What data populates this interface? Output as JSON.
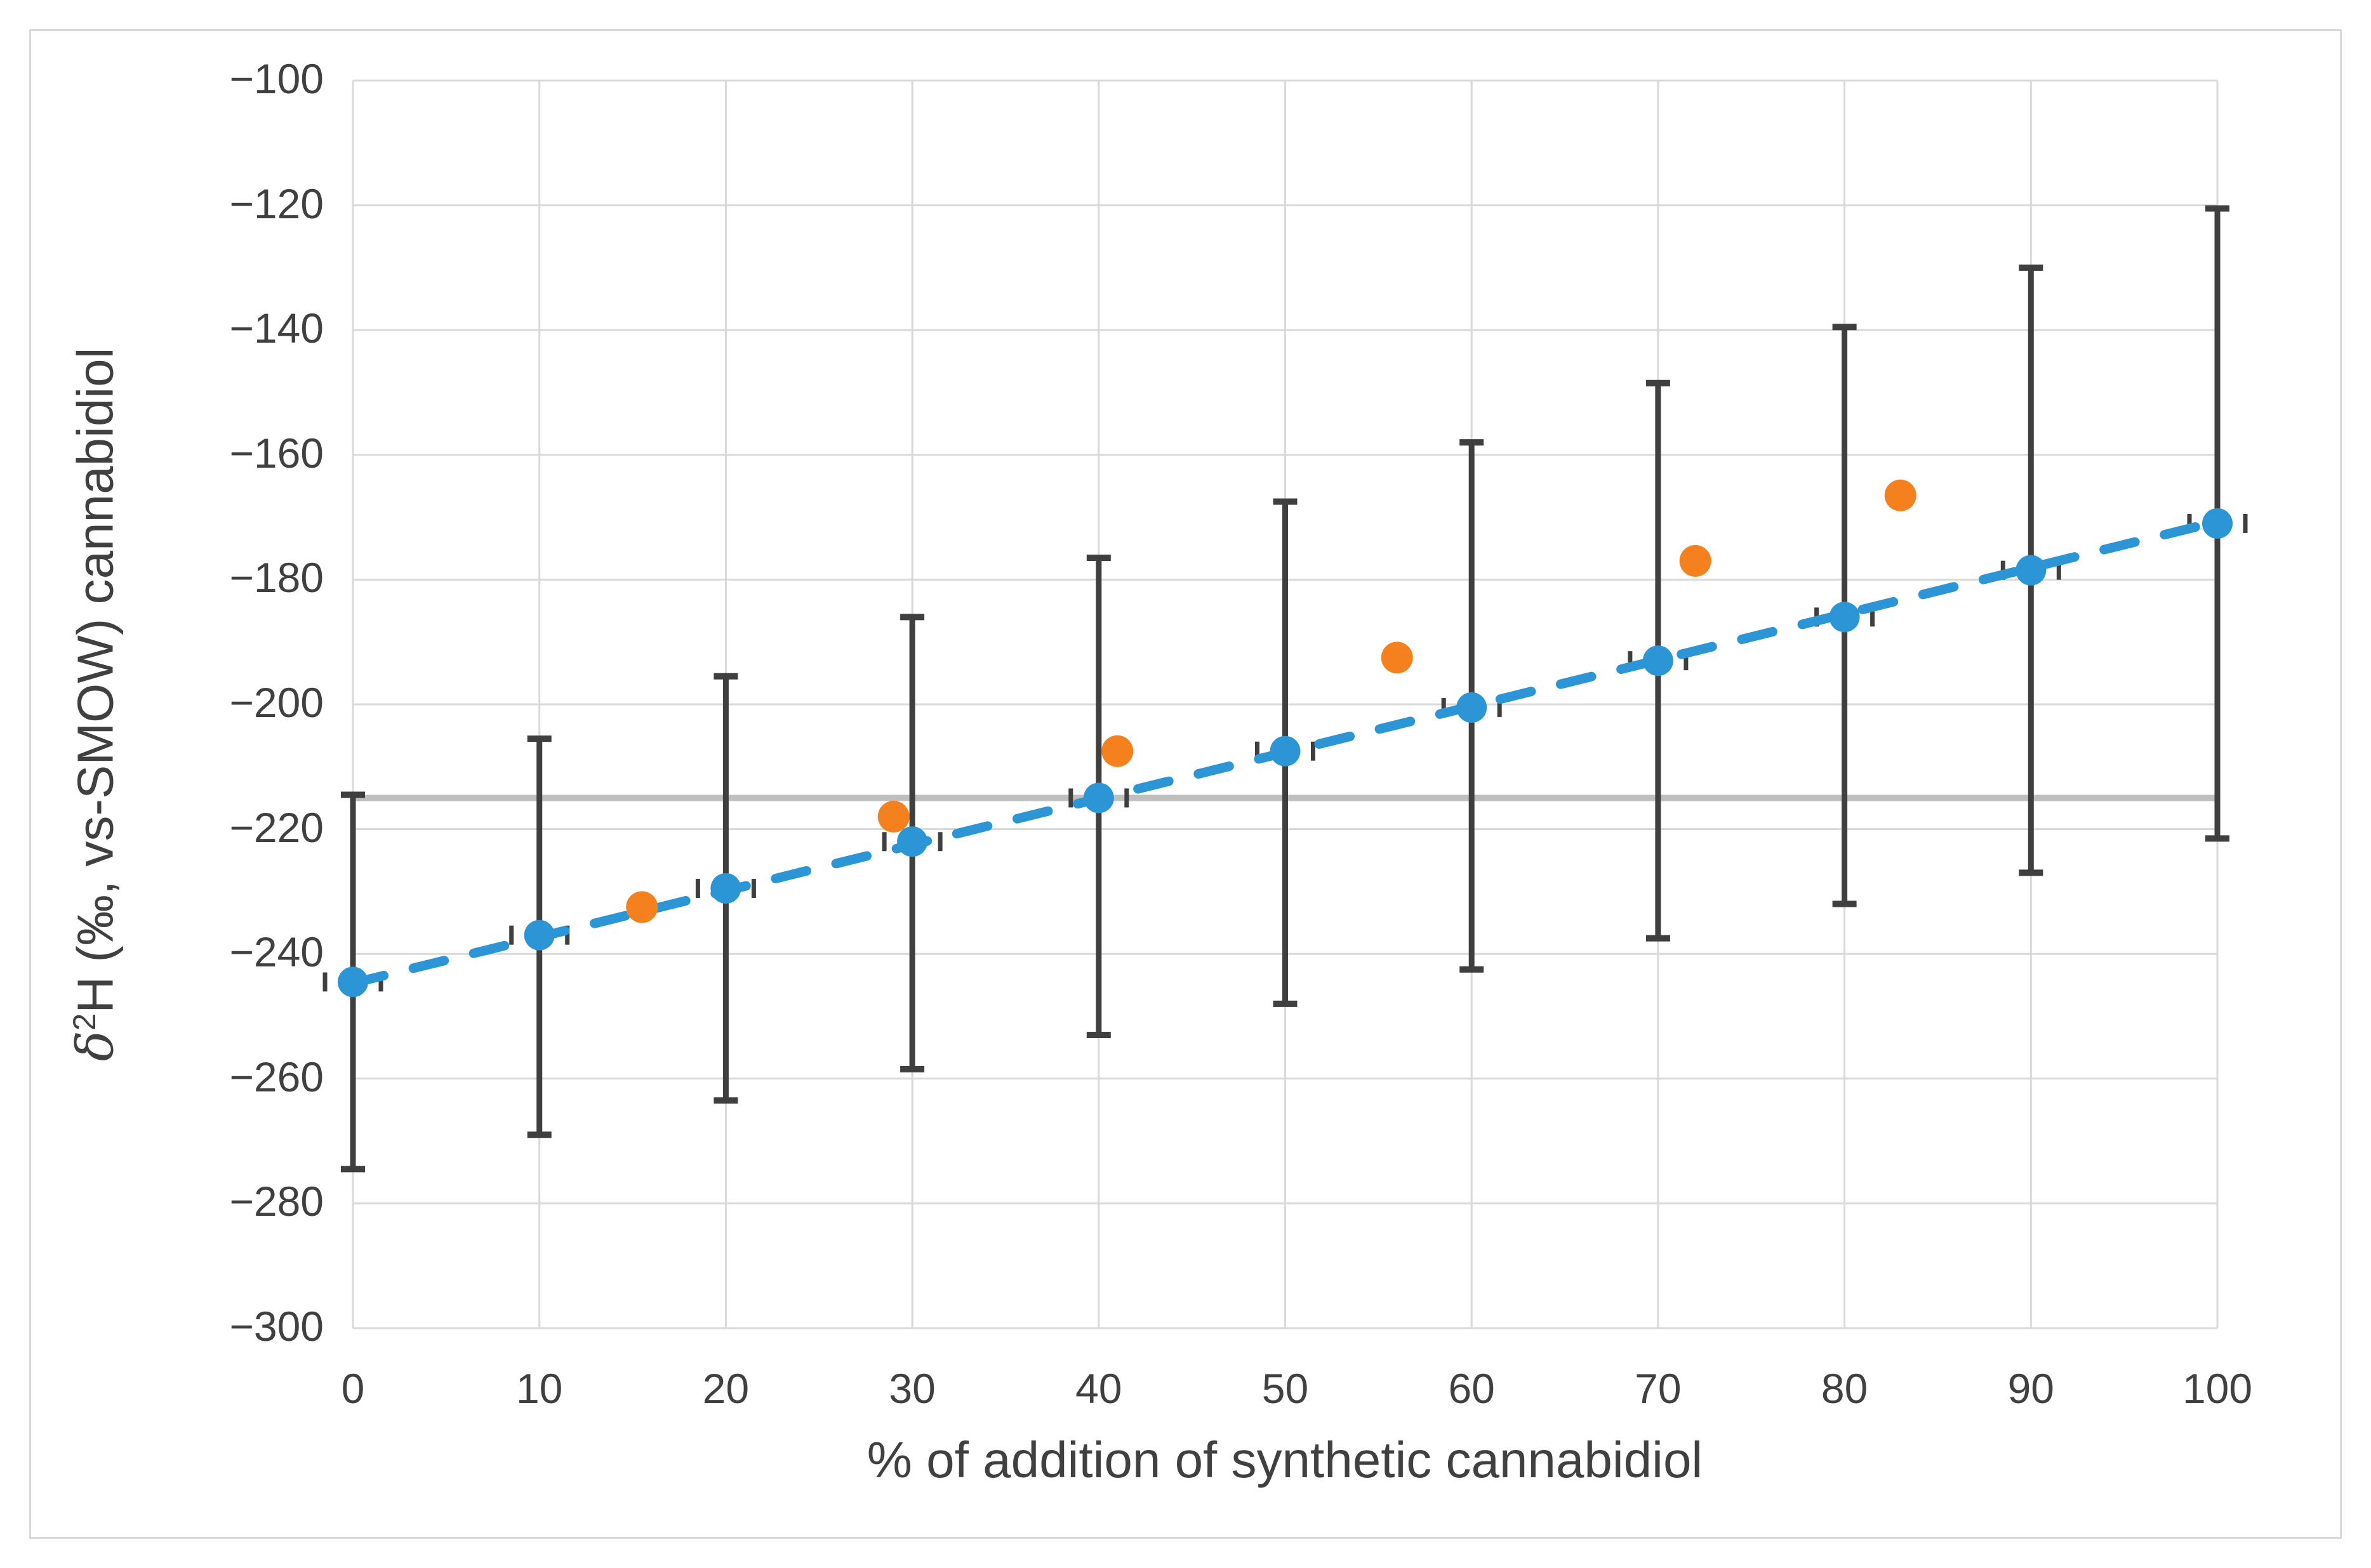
{
  "figure": {
    "background": "#FFFFFF",
    "frame_color": "#D8D8D8"
  },
  "chart_data": {
    "type": "scatter",
    "title": "",
    "xlabel": "% of addition of synthetic cannabidiol",
    "ylabel": {
      "delta": "δ",
      "sup": "2",
      "rest": "H (‰, vs-SMOW) cannabidiol"
    },
    "xlim": [
      0,
      100
    ],
    "ylim": [
      -300,
      -100
    ],
    "x_ticks": [
      0,
      10,
      20,
      30,
      40,
      50,
      60,
      70,
      80,
      90,
      100
    ],
    "x_tick_labels": [
      "0",
      "10",
      "20",
      "30",
      "40",
      "50",
      "60",
      "70",
      "80",
      "90",
      "100"
    ],
    "y_ticks": [
      -100,
      -120,
      -140,
      -160,
      -180,
      -200,
      -220,
      -240,
      -260,
      -280,
      -300
    ],
    "y_tick_labels": [
      "−100",
      "−120",
      "−140",
      "−160",
      "−180",
      "−200",
      "−220",
      "−240",
      "−260",
      "−280",
      "−300"
    ],
    "grid": true,
    "legend": "none",
    "colors": {
      "gridline": "#D9D9D9",
      "error_bar": "#3F3F3F",
      "reference_line": "#BFBFBF",
      "tick_text": "#404040"
    },
    "reference_line": {
      "y": -215,
      "stroke_width": 10
    },
    "trendline": {
      "style": "dashed",
      "color": "#2B95D6",
      "x1": 0,
      "y1": -244.7,
      "x2": 100,
      "y2": -170.7
    },
    "series": [
      {
        "id": "blue-series",
        "color": "#2B95D6",
        "marker": "circle",
        "marker_radius": 24,
        "has_error_bars": true,
        "points": [
          {
            "x": 0,
            "y": -244.5,
            "err_low": -274.5,
            "err_high": -214.5
          },
          {
            "x": 10,
            "y": -237.0,
            "err_low": -269.0,
            "err_high": -205.5
          },
          {
            "x": 20,
            "y": -229.5,
            "err_low": -263.5,
            "err_high": -195.5
          },
          {
            "x": 30,
            "y": -222.0,
            "err_low": -258.5,
            "err_high": -186.0
          },
          {
            "x": 40,
            "y": -215.0,
            "err_low": -253.0,
            "err_high": -176.5
          },
          {
            "x": 50,
            "y": -207.5,
            "err_low": -248.0,
            "err_high": -167.5
          },
          {
            "x": 60,
            "y": -200.5,
            "err_low": -242.5,
            "err_high": -158.0
          },
          {
            "x": 70,
            "y": -193.0,
            "err_low": -237.5,
            "err_high": -148.5
          },
          {
            "x": 80,
            "y": -186.0,
            "err_low": -232.0,
            "err_high": -139.5
          },
          {
            "x": 90,
            "y": -178.5,
            "err_low": -227.0,
            "err_high": -130.0
          },
          {
            "x": 100,
            "y": -171.0,
            "err_low": -221.5,
            "err_high": -120.5
          }
        ]
      },
      {
        "id": "orange-series",
        "color": "#F5801E",
        "marker": "circle",
        "marker_radius": 25,
        "has_error_bars": false,
        "points": [
          {
            "x": 15.5,
            "y": -232.5
          },
          {
            "x": 29,
            "y": -218.0
          },
          {
            "x": 41,
            "y": -207.5
          },
          {
            "x": 56,
            "y": -192.5
          },
          {
            "x": 72,
            "y": -177.0
          },
          {
            "x": 83,
            "y": -166.5
          }
        ]
      }
    ]
  }
}
